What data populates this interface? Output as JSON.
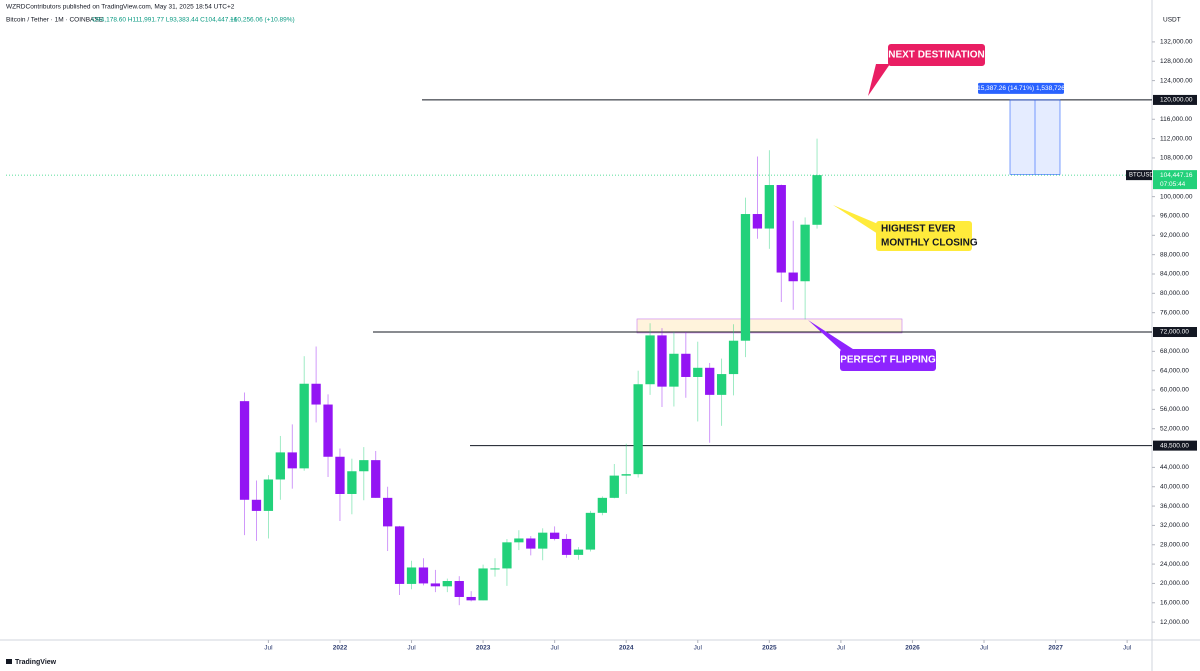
{
  "header": {
    "publisher": "WZRDContributors published on TradingView.com, May 31, 2025 18:54 UTC+2",
    "symbol": "Bitcoin / Tether · 1M · COINBASE",
    "ohlc": "O94,178.60 H111,991.77 L93,383.44 C104,447.16",
    "change": "+10,256.06 (+10.89%)"
  },
  "chart_data": {
    "type": "candlestick",
    "currency": "USDT",
    "x": [
      "2021-05",
      "2021-06",
      "2021-07",
      "2021-08",
      "2021-09",
      "2021-10",
      "2021-11",
      "2021-12",
      "2022-01",
      "2022-02",
      "2022-03",
      "2022-04",
      "2022-05",
      "2022-06",
      "2022-07",
      "2022-08",
      "2022-09",
      "2022-10",
      "2022-11",
      "2022-12",
      "2023-01",
      "2023-02",
      "2023-03",
      "2023-04",
      "2023-05",
      "2023-06",
      "2023-07",
      "2023-08",
      "2023-09",
      "2023-10",
      "2023-11",
      "2023-12",
      "2024-01",
      "2024-02",
      "2024-03",
      "2024-04",
      "2024-05",
      "2024-06",
      "2024-07",
      "2024-08",
      "2024-09",
      "2024-10",
      "2024-11",
      "2024-12",
      "2025-01",
      "2025-02",
      "2025-03",
      "2025-04",
      "2025-05"
    ],
    "open": [
      57700,
      37300,
      35000,
      41500,
      47100,
      43800,
      61300,
      57000,
      46200,
      38500,
      43200,
      45500,
      37700,
      31800,
      19900,
      23300,
      20000,
      19400,
      20500,
      17200,
      16500,
      23100,
      23100,
      28500,
      29300,
      27200,
      30500,
      29200,
      25900,
      27000,
      34600,
      37700,
      42300,
      42600,
      61200,
      71300,
      60700,
      67500,
      62700,
      64600,
      59000,
      63300,
      70200,
      96400,
      93400,
      102400,
      84300,
      82500,
      94178.6
    ],
    "high": [
      59500,
      41300,
      42400,
      50500,
      52900,
      67000,
      69000,
      59100,
      47900,
      45800,
      48200,
      47400,
      40000,
      31900,
      24700,
      25200,
      22800,
      21000,
      21500,
      18400,
      23900,
      25200,
      29200,
      31000,
      29800,
      31400,
      31800,
      30200,
      27500,
      35000,
      38000,
      44700,
      48900,
      64000,
      73800,
      72800,
      72000,
      72000,
      70000,
      65600,
      66500,
      73600,
      99800,
      108300,
      109600,
      102500,
      95000,
      95700,
      111991.77
    ],
    "low": [
      30000,
      28800,
      29300,
      37300,
      39600,
      43300,
      53300,
      42000,
      32900,
      34300,
      37200,
      37700,
      26700,
      17600,
      18800,
      19600,
      18200,
      18200,
      15500,
      16300,
      16500,
      21400,
      19500,
      26900,
      25800,
      24800,
      28900,
      25300,
      24900,
      26600,
      34100,
      37600,
      38500,
      41900,
      59000,
      56500,
      56600,
      58400,
      53500,
      49100,
      52600,
      58900,
      66800,
      91300,
      89200,
      78200,
      76600,
      74600,
      93383.44
    ],
    "close": [
      37300,
      35000,
      41500,
      47100,
      43800,
      61300,
      57000,
      46200,
      38500,
      43200,
      45500,
      37700,
      31800,
      19900,
      23300,
      20000,
      19400,
      20500,
      17200,
      16500,
      23100,
      23100,
      28500,
      29300,
      27200,
      30500,
      29200,
      25900,
      27000,
      34600,
      37700,
      42300,
      42600,
      61200,
      71300,
      60700,
      67500,
      62700,
      64600,
      59000,
      63300,
      70200,
      96400,
      93400,
      102400,
      84300,
      82500,
      94200,
      104447.16
    ],
    "up_color": "#22d17a",
    "down_color": "#9315f3",
    "xlim": [
      "2019-09",
      "2027-09"
    ],
    "xticks": [
      {
        "value": "2021-07",
        "label": "Jul"
      },
      {
        "value": "2022-01",
        "label": "2022"
      },
      {
        "value": "2022-07",
        "label": "Jul"
      },
      {
        "value": "2023-01",
        "label": "2023"
      },
      {
        "value": "2023-07",
        "label": "Jul"
      },
      {
        "value": "2024-01",
        "label": "2024"
      },
      {
        "value": "2024-07",
        "label": "Jul"
      },
      {
        "value": "2025-01",
        "label": "2025"
      },
      {
        "value": "2025-07",
        "label": "Jul"
      },
      {
        "value": "2026-01",
        "label": "2026"
      },
      {
        "value": "2026-07",
        "label": "Jul"
      },
      {
        "value": "2027-01",
        "label": "2027"
      },
      {
        "value": "2027-07",
        "label": "Jul"
      }
    ],
    "ylim": [
      8300,
      138600
    ],
    "yticks": [
      {
        "value": 12000,
        "label": "12,000.00"
      },
      {
        "value": 16000,
        "label": "16,000.00"
      },
      {
        "value": 20000,
        "label": "20,000.00"
      },
      {
        "value": 24000,
        "label": "24,000.00"
      },
      {
        "value": 28000,
        "label": "28,000.00"
      },
      {
        "value": 32000,
        "label": "32,000.00"
      },
      {
        "value": 36000,
        "label": "36,000.00"
      },
      {
        "value": 40000,
        "label": "40,000.00"
      },
      {
        "value": 44000,
        "label": "44,000.00"
      },
      {
        "value": 52000,
        "label": "52,000.00"
      },
      {
        "value": 56000,
        "label": "56,000.00"
      },
      {
        "value": 60000,
        "label": "60,000.00"
      },
      {
        "value": 64000,
        "label": "64,000.00"
      },
      {
        "value": 68000,
        "label": "68,000.00"
      },
      {
        "value": 76000,
        "label": "76,000.00"
      },
      {
        "value": 80000,
        "label": "80,000.00"
      },
      {
        "value": 84000,
        "label": "84,000.00"
      },
      {
        "value": 88000,
        "label": "88,000.00"
      },
      {
        "value": 92000,
        "label": "92,000.00"
      },
      {
        "value": 96000,
        "label": "96,000.00"
      },
      {
        "value": 100000,
        "label": "100,000.00"
      },
      {
        "value": 108000,
        "label": "108,000.00"
      },
      {
        "value": 112000,
        "label": "112,000.00"
      },
      {
        "value": 116000,
        "label": "116,000.00"
      },
      {
        "value": 124000,
        "label": "124,000.00"
      },
      {
        "value": 128000,
        "label": "128,000.00"
      },
      {
        "value": 132000,
        "label": "132,000.00"
      }
    ],
    "levels": [
      {
        "value": 120000,
        "label": "120,000.00"
      },
      {
        "value": 72000,
        "label": "72,000.00"
      },
      {
        "value": 48500,
        "label": "48,500.00"
      }
    ],
    "zone": {
      "low": 71800,
      "high": 74700
    },
    "last_price": {
      "symbol": "BTCUSDT",
      "value": 104447.16,
      "label": "104,447.16",
      "countdown": "07:05:44"
    },
    "measure": {
      "from": 104612.74,
      "to": 120000,
      "label": "15,387.26 (14.71%) 1,538,726"
    },
    "callouts": [
      "NEXT DESTINATION",
      "HIGHEST EVER",
      "MONTHLY CLOSING",
      "PERFECT FLIPPING"
    ]
  },
  "footer": {
    "brand": "TradingView"
  }
}
